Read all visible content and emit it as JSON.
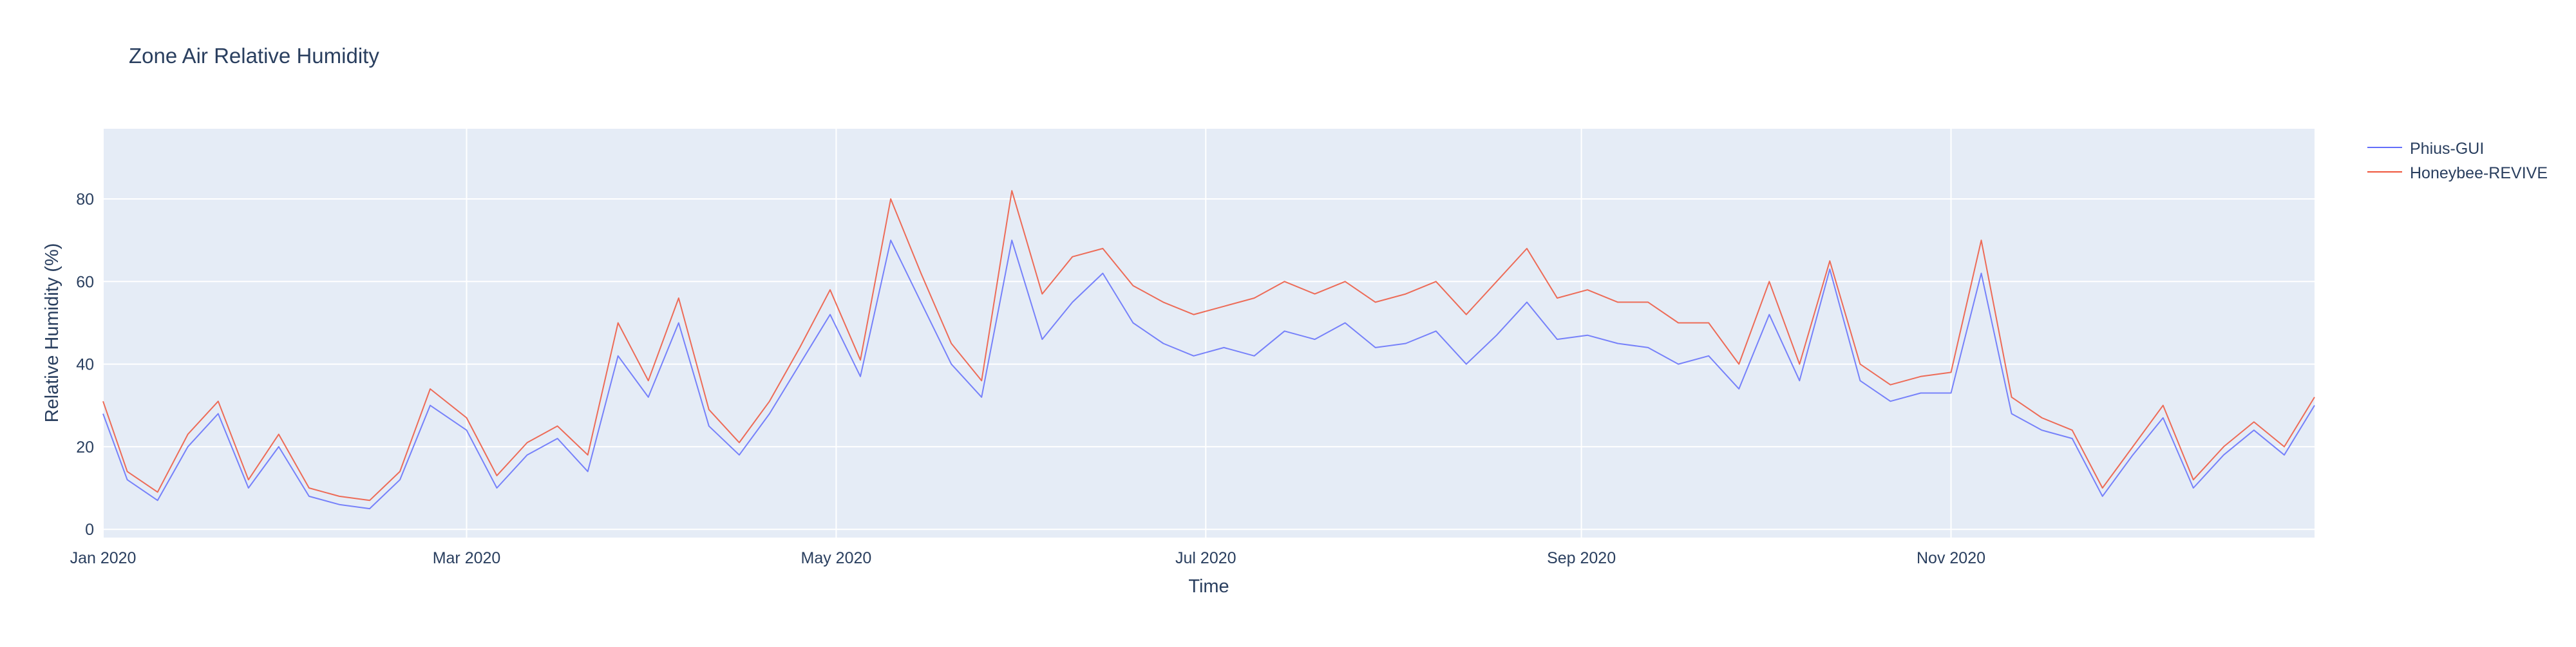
{
  "chart_data": {
    "type": "line",
    "title": "Zone Air Relative Humidity",
    "xlabel": "Time",
    "ylabel": "Relative Humidity (%)",
    "xlim": [
      "2020-01-01",
      "2020-12-31"
    ],
    "ylim": [
      -2,
      97
    ],
    "x_ticks": [
      {
        "date": "2020-01-01",
        "label": "Jan 2020"
      },
      {
        "date": "2020-03-01",
        "label": "Mar 2020"
      },
      {
        "date": "2020-05-01",
        "label": "May 2020"
      },
      {
        "date": "2020-07-01",
        "label": "Jul 2020"
      },
      {
        "date": "2020-09-01",
        "label": "Sep 2020"
      },
      {
        "date": "2020-11-01",
        "label": "Nov 2020"
      }
    ],
    "y_ticks": [
      0,
      20,
      40,
      60,
      80
    ],
    "grid": true,
    "legend_position": "top-right",
    "plot_background": "#e5ecf6",
    "series": [
      {
        "name": "Phius-GUI",
        "color": "#636efa",
        "dates": [
          "2020-01-01",
          "2020-01-05",
          "2020-01-10",
          "2020-01-15",
          "2020-01-20",
          "2020-01-25",
          "2020-01-30",
          "2020-02-04",
          "2020-02-09",
          "2020-02-14",
          "2020-02-19",
          "2020-02-24",
          "2020-03-01",
          "2020-03-06",
          "2020-03-11",
          "2020-03-16",
          "2020-03-21",
          "2020-03-26",
          "2020-03-31",
          "2020-04-05",
          "2020-04-10",
          "2020-04-15",
          "2020-04-20",
          "2020-04-25",
          "2020-04-30",
          "2020-05-05",
          "2020-05-10",
          "2020-05-15",
          "2020-05-20",
          "2020-05-25",
          "2020-05-30",
          "2020-06-04",
          "2020-06-09",
          "2020-06-14",
          "2020-06-19",
          "2020-06-24",
          "2020-06-29",
          "2020-07-04",
          "2020-07-09",
          "2020-07-14",
          "2020-07-19",
          "2020-07-24",
          "2020-07-29",
          "2020-08-03",
          "2020-08-08",
          "2020-08-13",
          "2020-08-18",
          "2020-08-23",
          "2020-08-28",
          "2020-09-02",
          "2020-09-07",
          "2020-09-12",
          "2020-09-17",
          "2020-09-22",
          "2020-09-27",
          "2020-10-02",
          "2020-10-07",
          "2020-10-12",
          "2020-10-17",
          "2020-10-22",
          "2020-10-27",
          "2020-11-01",
          "2020-11-06",
          "2020-11-11",
          "2020-11-16",
          "2020-11-21",
          "2020-11-26",
          "2020-12-01",
          "2020-12-06",
          "2020-12-11",
          "2020-12-16",
          "2020-12-21",
          "2020-12-26",
          "2020-12-31"
        ],
        "values": [
          28,
          12,
          7,
          20,
          28,
          10,
          20,
          8,
          6,
          5,
          12,
          30,
          24,
          10,
          18,
          22,
          14,
          42,
          32,
          50,
          25,
          18,
          28,
          40,
          52,
          37,
          70,
          55,
          40,
          32,
          70,
          46,
          55,
          62,
          50,
          45,
          42,
          44,
          42,
          48,
          46,
          50,
          44,
          45,
          48,
          40,
          47,
          55,
          46,
          47,
          45,
          44,
          40,
          42,
          34,
          52,
          36,
          63,
          36,
          31,
          33,
          33,
          62,
          28,
          24,
          22,
          8,
          18,
          27,
          10,
          18,
          24,
          18,
          30
        ]
      },
      {
        "name": "Honeybee-REVIVE",
        "color": "#ef553b",
        "dates": [
          "2020-01-01",
          "2020-01-05",
          "2020-01-10",
          "2020-01-15",
          "2020-01-20",
          "2020-01-25",
          "2020-01-30",
          "2020-02-04",
          "2020-02-09",
          "2020-02-14",
          "2020-02-19",
          "2020-02-24",
          "2020-03-01",
          "2020-03-06",
          "2020-03-11",
          "2020-03-16",
          "2020-03-21",
          "2020-03-26",
          "2020-03-31",
          "2020-04-05",
          "2020-04-10",
          "2020-04-15",
          "2020-04-20",
          "2020-04-25",
          "2020-04-30",
          "2020-05-05",
          "2020-05-10",
          "2020-05-15",
          "2020-05-20",
          "2020-05-25",
          "2020-05-30",
          "2020-06-04",
          "2020-06-09",
          "2020-06-14",
          "2020-06-19",
          "2020-06-24",
          "2020-06-29",
          "2020-07-04",
          "2020-07-09",
          "2020-07-14",
          "2020-07-19",
          "2020-07-24",
          "2020-07-29",
          "2020-08-03",
          "2020-08-08",
          "2020-08-13",
          "2020-08-18",
          "2020-08-23",
          "2020-08-28",
          "2020-09-02",
          "2020-09-07",
          "2020-09-12",
          "2020-09-17",
          "2020-09-22",
          "2020-09-27",
          "2020-10-02",
          "2020-10-07",
          "2020-10-12",
          "2020-10-17",
          "2020-10-22",
          "2020-10-27",
          "2020-11-01",
          "2020-11-06",
          "2020-11-11",
          "2020-11-16",
          "2020-11-21",
          "2020-11-26",
          "2020-12-01",
          "2020-12-06",
          "2020-12-11",
          "2020-12-16",
          "2020-12-21",
          "2020-12-26",
          "2020-12-31"
        ],
        "values": [
          31,
          14,
          9,
          23,
          31,
          12,
          23,
          10,
          8,
          7,
          14,
          34,
          27,
          13,
          21,
          25,
          18,
          50,
          36,
          56,
          29,
          21,
          31,
          44,
          58,
          41,
          80,
          62,
          45,
          36,
          82,
          57,
          66,
          68,
          59,
          55,
          52,
          54,
          56,
          60,
          57,
          60,
          55,
          57,
          60,
          52,
          60,
          68,
          56,
          58,
          55,
          55,
          50,
          50,
          40,
          60,
          40,
          65,
          40,
          35,
          37,
          38,
          70,
          32,
          27,
          24,
          10,
          20,
          30,
          12,
          20,
          26,
          20,
          32
        ]
      }
    ]
  }
}
